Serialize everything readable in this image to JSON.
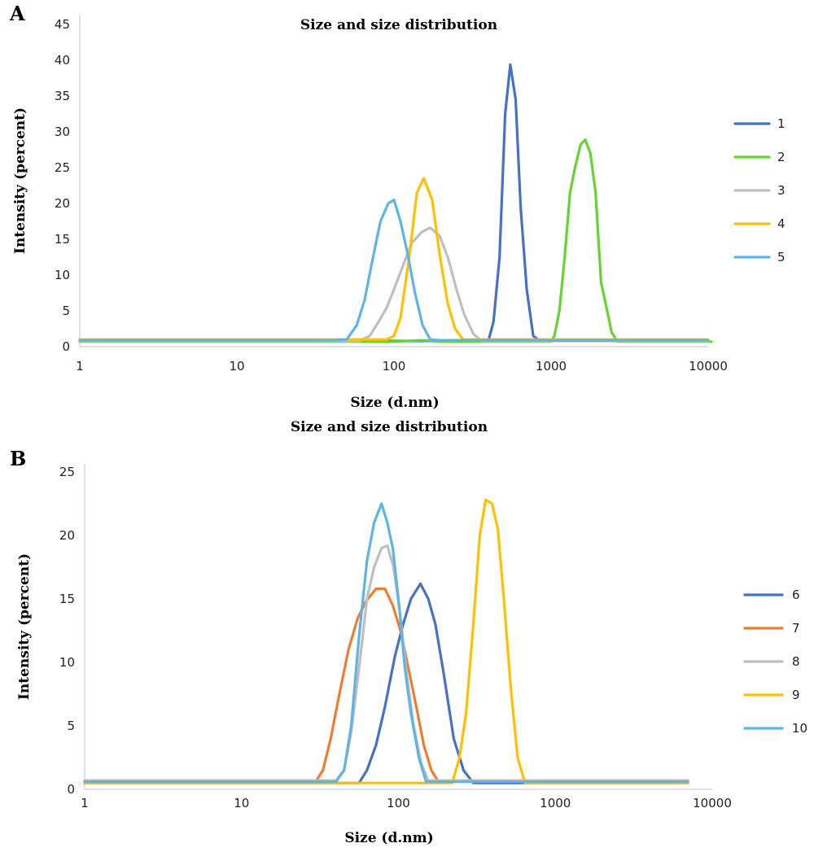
{
  "chart_data": [
    {
      "panel": "A",
      "type": "line",
      "title": "Size and size distribution",
      "xlabel": "Size (d.nm)",
      "ylabel": "Intensity (percent)",
      "xscale": "log",
      "xlim": [
        1,
        10000
      ],
      "ylim": [
        0,
        45
      ],
      "x_ticks": [
        "1",
        "10",
        "100",
        "1000",
        "10000"
      ],
      "y_ticks": [
        "0",
        "5",
        "10",
        "15",
        "20",
        "25",
        "30",
        "35",
        "40",
        "45"
      ],
      "grid": false,
      "legend_position": "right",
      "series": [
        {
          "name": "1",
          "color": "#4472c4",
          "x": [
            1,
            10,
            100,
            350,
            400,
            430,
            470,
            510,
            550,
            595,
            640,
            700,
            770,
            850,
            1000,
            10000
          ],
          "y": [
            0.8,
            0.8,
            0.8,
            0.8,
            0.9,
            3.5,
            12.5,
            32.5,
            39.4,
            34.5,
            19.5,
            8.0,
            1.5,
            0.8,
            0.8,
            0.8
          ]
        },
        {
          "name": "2",
          "color": "#66d430",
          "x": [
            1,
            10,
            100,
            150,
            200,
            1000,
            1050,
            1130,
            1220,
            1320,
            1420,
            1540,
            1650,
            1780,
            1920,
            2080,
            2250,
            2430,
            2650,
            10500
          ],
          "y": [
            0.7,
            0.7,
            0.7,
            0.9,
            0.7,
            0.7,
            1.5,
            5.0,
            12.5,
            21.5,
            25.0,
            28.2,
            28.9,
            27.0,
            21.5,
            9.0,
            5.5,
            2.0,
            0.7,
            0.7
          ]
        },
        {
          "name": "3",
          "color": "#bfbfbf",
          "x": [
            1,
            10,
            60,
            70,
            80,
            90,
            100,
            115,
            130,
            150,
            170,
            195,
            220,
            250,
            280,
            320,
            360,
            10000
          ],
          "y": [
            0.8,
            0.8,
            0.8,
            1.5,
            3.5,
            5.5,
            8.0,
            11.5,
            14.5,
            16.0,
            16.6,
            15.5,
            12.5,
            8.0,
            4.5,
            1.8,
            0.8,
            0.8
          ]
        },
        {
          "name": "4",
          "color": "#ffc000",
          "x": [
            1,
            10,
            90,
            100,
            110,
            125,
            140,
            155,
            175,
            195,
            220,
            245,
            275,
            310,
            10000
          ],
          "y": [
            1.0,
            1.0,
            1.0,
            1.5,
            4.0,
            12.5,
            21.5,
            23.5,
            20.5,
            13.0,
            6.0,
            2.5,
            1.0,
            1.0,
            1.0
          ]
        },
        {
          "name": "5",
          "color": "#5eb4e6",
          "x": [
            1,
            10,
            40,
            50,
            58,
            65,
            72,
            82,
            92,
            100,
            110,
            122,
            136,
            152,
            170,
            195,
            225,
            250,
            10000
          ],
          "y": [
            0.9,
            0.9,
            0.9,
            1.0,
            3.0,
            6.5,
            11.5,
            17.5,
            20.0,
            20.5,
            17.5,
            13.0,
            7.5,
            3.0,
            1.0,
            0.9,
            0.9,
            0.9,
            0.9
          ]
        }
      ]
    },
    {
      "panel": "B",
      "type": "line",
      "title": "Size and size distribution",
      "xlabel": "Size (d.nm)",
      "ylabel": "Intensity (percent)",
      "xscale": "log",
      "xlim": [
        1,
        10000
      ],
      "ylim": [
        0,
        25
      ],
      "x_ticks": [
        "1",
        "10",
        "100",
        "1000",
        "10000"
      ],
      "y_ticks": [
        "0",
        "5",
        "10",
        "15",
        "20",
        "25"
      ],
      "grid": false,
      "legend_position": "right",
      "series": [
        {
          "name": "6",
          "color": "#4472c4",
          "x": [
            1,
            10,
            45,
            50,
            56,
            63,
            72,
            82,
            95,
            107,
            120,
            138,
            155,
            172,
            195,
            225,
            260,
            300,
            350,
            7000
          ],
          "y": [
            0.5,
            0.5,
            0.5,
            0.5,
            0.5,
            1.5,
            3.5,
            6.5,
            10.5,
            13.0,
            15.0,
            16.2,
            15.0,
            13.0,
            9.0,
            4.0,
            1.5,
            0.5,
            0.5,
            0.5
          ]
        },
        {
          "name": "7",
          "color": "#ed7d31",
          "x": [
            1,
            10,
            30,
            33,
            37,
            42,
            48,
            55,
            62,
            72,
            82,
            92,
            103,
            116,
            130,
            145,
            162,
            182,
            205,
            7000
          ],
          "y": [
            0.7,
            0.7,
            0.7,
            1.5,
            4.0,
            7.5,
            11.0,
            13.5,
            14.8,
            15.8,
            15.8,
            14.5,
            12.5,
            9.5,
            6.5,
            3.5,
            1.5,
            0.5,
            0.7,
            0.7
          ]
        },
        {
          "name": "8",
          "color": "#bfbfbf",
          "x": [
            1,
            10,
            40,
            45,
            50,
            56,
            63,
            70,
            78,
            85,
            93,
            102,
            113,
            125,
            140,
            155,
            175,
            7000
          ],
          "y": [
            0.7,
            0.7,
            0.7,
            1.5,
            4.5,
            9.5,
            15.0,
            17.5,
            19.0,
            19.2,
            17.5,
            14.0,
            9.0,
            5.0,
            2.0,
            0.7,
            0.7,
            0.7
          ]
        },
        {
          "name": "9",
          "color": "#ffc000",
          "x": [
            1,
            10,
            100,
            220,
            245,
            270,
            300,
            330,
            360,
            395,
            430,
            470,
            520,
            575,
            640,
            700,
            7000
          ],
          "y": [
            0.5,
            0.5,
            0.5,
            0.5,
            2.5,
            6.0,
            13.0,
            20.0,
            22.8,
            22.5,
            20.5,
            15.0,
            8.0,
            2.5,
            0.5,
            0.5,
            0.5
          ]
        },
        {
          "name": "10",
          "color": "#5eb4e6",
          "x": [
            1,
            10,
            40,
            45,
            50,
            56,
            63,
            70,
            78,
            85,
            92,
            100,
            110,
            120,
            135,
            150,
            165,
            7000
          ],
          "y": [
            0.6,
            0.6,
            0.6,
            1.5,
            5.0,
            12.0,
            18.0,
            21.0,
            22.5,
            21.0,
            19.0,
            15.0,
            9.5,
            6.0,
            2.5,
            0.6,
            0.6,
            0.6
          ]
        }
      ]
    }
  ]
}
